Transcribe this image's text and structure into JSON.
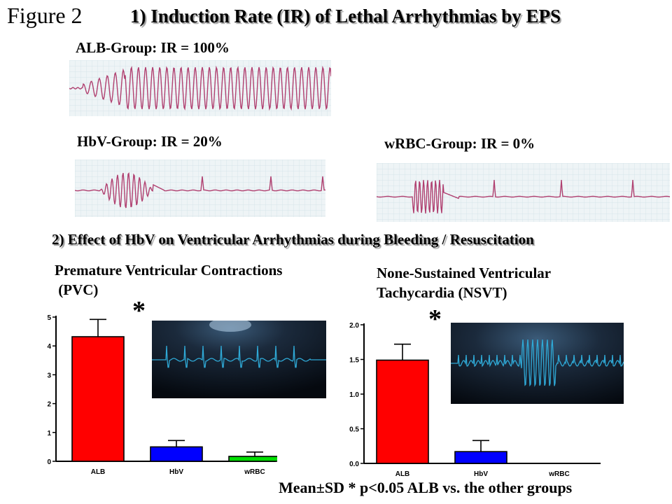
{
  "figure_label": "Figure 2",
  "section1_title": "1) Induction Rate (IR) of Lethal Arrhythmias by EPS",
  "section2_title": "2)  Effect of HbV on Ventricular Arrhythmias during Bleeding / Resuscitation",
  "ecg_groups": [
    {
      "label": "ALB-Group:   IR = 100%"
    },
    {
      "label": "HbV-Group:  IR = 20%"
    },
    {
      "label": "wRBC-Group: IR = 0%"
    }
  ],
  "colors": {
    "red": "#ff0000",
    "blue": "#0000ff",
    "green": "#00dd00",
    "ecg_trace": "#b04070",
    "monitor_trace": "#2fa9d6"
  },
  "footer": {
    "text": "Mean±SD   * p<0.05 ALB vs. the other groups"
  },
  "chart_data": [
    {
      "type": "bar",
      "title": "Premature Ventricular Contractions\n (PVC)",
      "title_lines": [
        "Premature Ventricular Contractions",
        " (PVC)"
      ],
      "categories": [
        "ALB",
        "HbV",
        "wRBC"
      ],
      "values": [
        4.32,
        0.5,
        0.17
      ],
      "errors": [
        0.6,
        0.22,
        0.15
      ],
      "colors": [
        "#ff0000",
        "#0000ff",
        "#00dd00"
      ],
      "ylim": [
        0,
        5
      ],
      "yticks": [
        "0",
        "1",
        "2",
        "3",
        "4",
        "5"
      ],
      "significance_marker": "*"
    },
    {
      "type": "bar",
      "title": "None-Sustained Ventricular\nTachycardia (NSVT)",
      "title_lines": [
        "None-Sustained Ventricular",
        "Tachycardia (NSVT)"
      ],
      "categories": [
        "ALB",
        "HbV",
        "wRBC"
      ],
      "values": [
        1.49,
        0.17,
        0.0
      ],
      "errors": [
        0.23,
        0.16,
        0.0
      ],
      "colors": [
        "#ff0000",
        "#0000ff",
        "#00dd00"
      ],
      "ylim": [
        0,
        2
      ],
      "yticks": [
        "0.0",
        "0.5",
        "1.0",
        "1.5",
        "2.0"
      ],
      "significance_marker": "*"
    }
  ]
}
